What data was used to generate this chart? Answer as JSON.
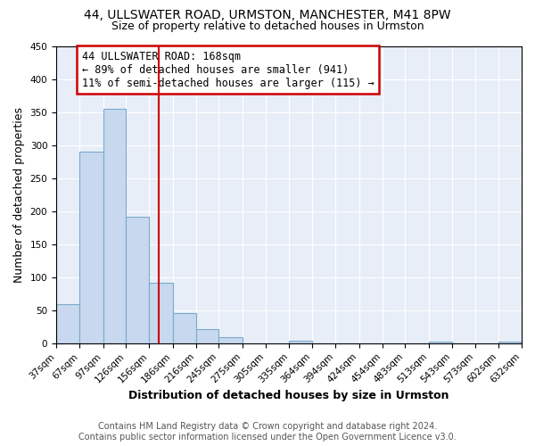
{
  "title": "44, ULLSWATER ROAD, URMSTON, MANCHESTER, M41 8PW",
  "subtitle": "Size of property relative to detached houses in Urmston",
  "xlabel": "Distribution of detached houses by size in Urmston",
  "ylabel": "Number of detached properties",
  "bar_left_edges": [
    37,
    67,
    97,
    126,
    156,
    186,
    216,
    245,
    275,
    305,
    335,
    364,
    394,
    424,
    454,
    483,
    513,
    543,
    573,
    602
  ],
  "bar_widths": [
    30,
    30,
    29,
    30,
    30,
    30,
    29,
    30,
    30,
    30,
    29,
    30,
    30,
    30,
    29,
    30,
    30,
    30,
    29,
    30
  ],
  "bar_heights": [
    59,
    290,
    355,
    192,
    91,
    46,
    21,
    9,
    0,
    0,
    4,
    0,
    0,
    0,
    0,
    0,
    3,
    0,
    0,
    3
  ],
  "bar_color": "#c8d8ee",
  "bar_edge_color": "#7aabcc",
  "tick_labels": [
    "37sqm",
    "67sqm",
    "97sqm",
    "126sqm",
    "156sqm",
    "186sqm",
    "216sqm",
    "245sqm",
    "275sqm",
    "305sqm",
    "335sqm",
    "364sqm",
    "394sqm",
    "424sqm",
    "454sqm",
    "483sqm",
    "513sqm",
    "543sqm",
    "573sqm",
    "602sqm",
    "632sqm"
  ],
  "vline_x": 168,
  "vline_color": "#cc0000",
  "vline_lw": 1.5,
  "annotation_title": "44 ULLSWATER ROAD: 168sqm",
  "annotation_line1": "← 89% of detached houses are smaller (941)",
  "annotation_line2": "11% of semi-detached houses are larger (115) →",
  "annotation_box_color": "#cc0000",
  "ylim": [
    0,
    450
  ],
  "yticks": [
    0,
    50,
    100,
    150,
    200,
    250,
    300,
    350,
    400,
    450
  ],
  "footer1": "Contains HM Land Registry data © Crown copyright and database right 2024.",
  "footer2": "Contains public sector information licensed under the Open Government Licence v3.0.",
  "bg_color": "#e8eef8",
  "fig_bg_color": "#ffffff",
  "grid_color": "#ffffff",
  "title_fontsize": 10,
  "subtitle_fontsize": 9,
  "axis_label_fontsize": 9,
  "tick_fontsize": 7.5,
  "annot_fontsize": 8.5,
  "footer_fontsize": 7
}
